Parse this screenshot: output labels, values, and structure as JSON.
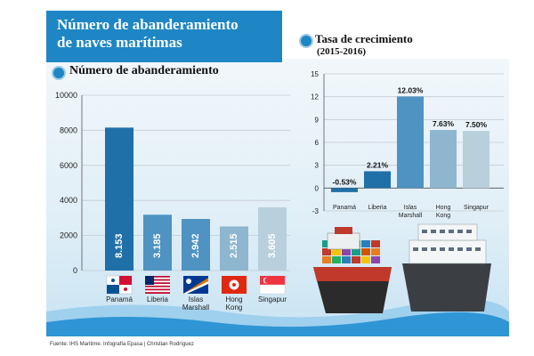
{
  "header": {
    "title_line1": "Número de abanderamiento",
    "title_line2": "de naves marítimas"
  },
  "colors": {
    "accent": "#1e86c4",
    "bar_dark": "#1f6fa8",
    "bar_mid": "#4e93c1",
    "bar_light": "#8fb6cf",
    "bar_pale": "#b9cfdc"
  },
  "chart_data": [
    {
      "type": "bar",
      "title": "Número de abanderamiento",
      "categories": [
        "Panamá",
        "Liberia",
        "Islas Marshall",
        "Hong Kong",
        "Singapur"
      ],
      "category_lines": [
        [
          "Panamá"
        ],
        [
          "Liberia"
        ],
        [
          "Islas",
          "Marshall"
        ],
        [
          "Hong",
          "Kong"
        ],
        [
          "Singapur"
        ]
      ],
      "values": [
        8153,
        3185,
        2942,
        2515,
        3605
      ],
      "value_labels": [
        "8.153",
        "3.185",
        "2.942",
        "2.515",
        "3.605"
      ],
      "ylim": [
        0,
        10000
      ],
      "yticks": [
        0,
        2000,
        4000,
        6000,
        8000,
        10000
      ],
      "grid": true
    },
    {
      "type": "bar",
      "title_line1": "Tasa de crecimiento",
      "title_line2": "(2015-2016)",
      "categories": [
        "Panamá",
        "Liberia",
        "Islas Marshall",
        "Hong Kong",
        "Singapur"
      ],
      "category_lines": [
        [
          "Panamá"
        ],
        [
          "Liberia"
        ],
        [
          "Islas",
          "Marshall"
        ],
        [
          "Hong",
          "Kong"
        ],
        [
          "Singapur"
        ]
      ],
      "values": [
        -0.53,
        2.21,
        12.03,
        7.63,
        7.5
      ],
      "value_labels": [
        "-0.53%",
        "2.21%",
        "12.03%",
        "7.63%",
        "7.50%"
      ],
      "ylim": [
        -3,
        15
      ],
      "yticks": [
        -3,
        0,
        3,
        6,
        9,
        12,
        15
      ],
      "grid": true
    }
  ],
  "source": "Fuente: IHS Maritime. Infografía Epasa | Christian Rodríguez"
}
